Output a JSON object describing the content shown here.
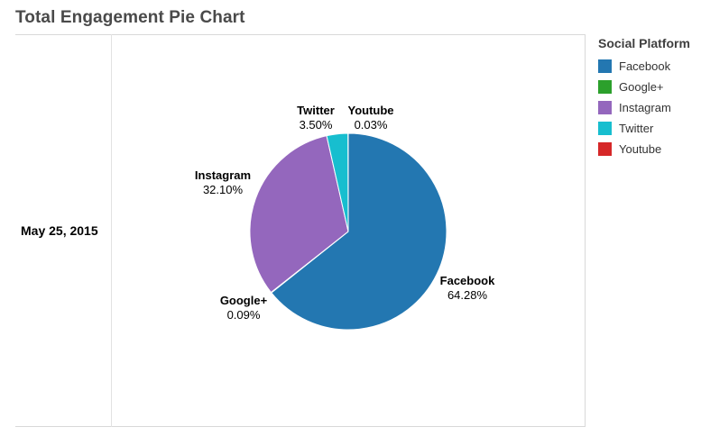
{
  "header": {
    "title": "Total Engagement Pie Chart"
  },
  "row_header": "May 25, 2015",
  "legend": {
    "title": "Social Platform",
    "items": [
      {
        "label": "Facebook",
        "color": "#2377b1"
      },
      {
        "label": "Google+",
        "color": "#2ca02c"
      },
      {
        "label": "Instagram",
        "color": "#9467bd"
      },
      {
        "label": "Twitter",
        "color": "#17becf"
      },
      {
        "label": "Youtube",
        "color": "#d62728"
      }
    ]
  },
  "chart_data": {
    "type": "pie",
    "title": "Total Engagement Pie Chart",
    "legend_title": "Social Platform",
    "legend_position": "right",
    "slices": [
      {
        "name": "Facebook",
        "value": 64.28,
        "label": "64.28%",
        "color": "#2377b1"
      },
      {
        "name": "Google+",
        "value": 0.09,
        "label": "0.09%",
        "color": "#2ca02c"
      },
      {
        "name": "Instagram",
        "value": 32.1,
        "label": "32.10%",
        "color": "#9467bd"
      },
      {
        "name": "Twitter",
        "value": 3.5,
        "label": "3.50%",
        "color": "#17becf"
      },
      {
        "name": "Youtube",
        "value": 0.03,
        "label": "0.03%",
        "color": "#d62728"
      }
    ]
  }
}
